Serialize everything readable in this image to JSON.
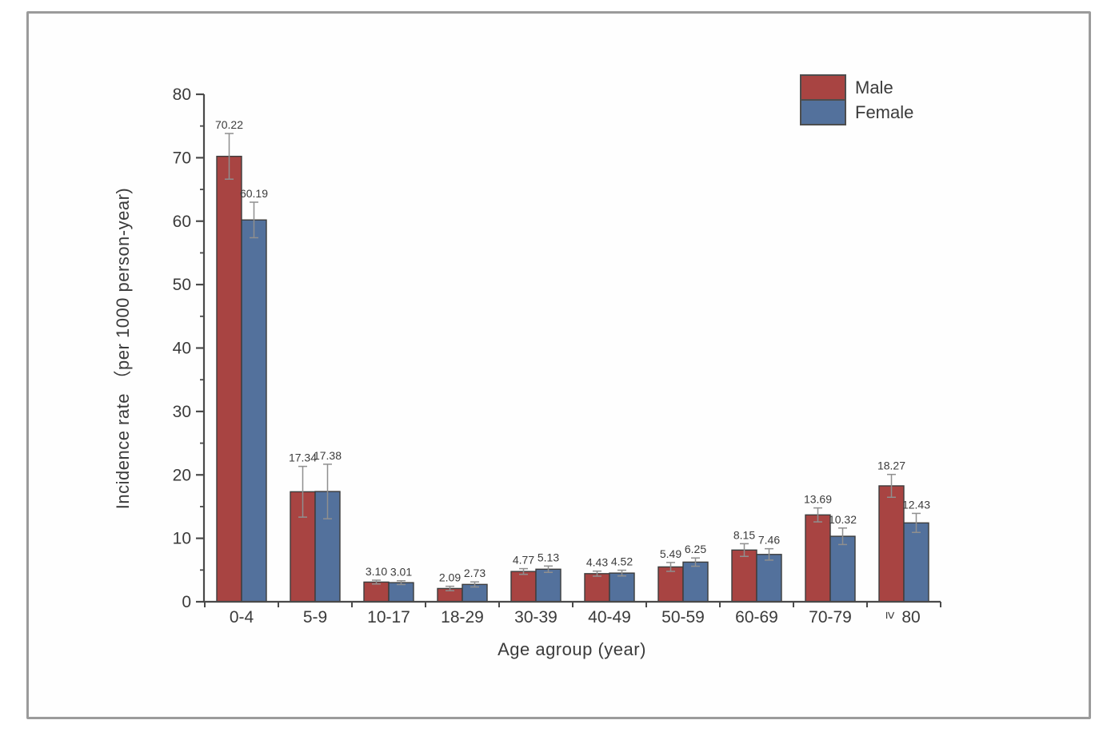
{
  "figure": {
    "background": "#fefefe",
    "border_color": "#9b9b9b"
  },
  "chart_data": {
    "type": "bar",
    "title": "",
    "xlabel": "Age agroup (year)",
    "ylabel": "Incidence rate （per 1000 person-year)",
    "categories": [
      "0-4",
      "5-9",
      "10-17",
      "18-29",
      "30-39",
      "40-49",
      "50-59",
      "60-69",
      "70-79",
      "≥ 80"
    ],
    "series": [
      {
        "name": "Male",
        "color": "#a84442",
        "values": [
          70.22,
          17.34,
          3.1,
          2.09,
          4.77,
          4.43,
          5.49,
          8.15,
          13.69,
          18.27
        ],
        "value_labels": [
          "70.22",
          "17.34",
          "3.10",
          "2.09",
          "4.77",
          "4.43",
          "5.49",
          "8.15",
          "13.69",
          "18.27"
        ],
        "errors": [
          3.6,
          4.0,
          0.3,
          0.35,
          0.45,
          0.4,
          0.7,
          1.0,
          1.1,
          1.8
        ]
      },
      {
        "name": "Female",
        "color": "#53719c",
        "values": [
          60.19,
          17.38,
          3.01,
          2.73,
          5.13,
          4.52,
          6.25,
          7.46,
          10.32,
          12.43
        ],
        "value_labels": [
          "60.19",
          "17.38",
          "3.01",
          "2.73",
          "5.13",
          "4.52",
          "6.25",
          "7.46",
          "10.32",
          "12.43"
        ],
        "errors": [
          2.8,
          4.3,
          0.3,
          0.4,
          0.5,
          0.45,
          0.65,
          0.9,
          1.3,
          1.5
        ]
      }
    ],
    "ylim": [
      0,
      80
    ],
    "ytick_step": 10,
    "yminor_step": 5,
    "ytick_labels": [
      "0",
      "10",
      "20",
      "30",
      "40",
      "50",
      "60",
      "70",
      "80"
    ],
    "grid": false,
    "legend_position": "top-right",
    "error_bar_color": "#8f8f8f",
    "bar_edge_color": "#3c3c3c",
    "axis_color": "#4a4a4a",
    "text_color": "#3b3b3b"
  }
}
